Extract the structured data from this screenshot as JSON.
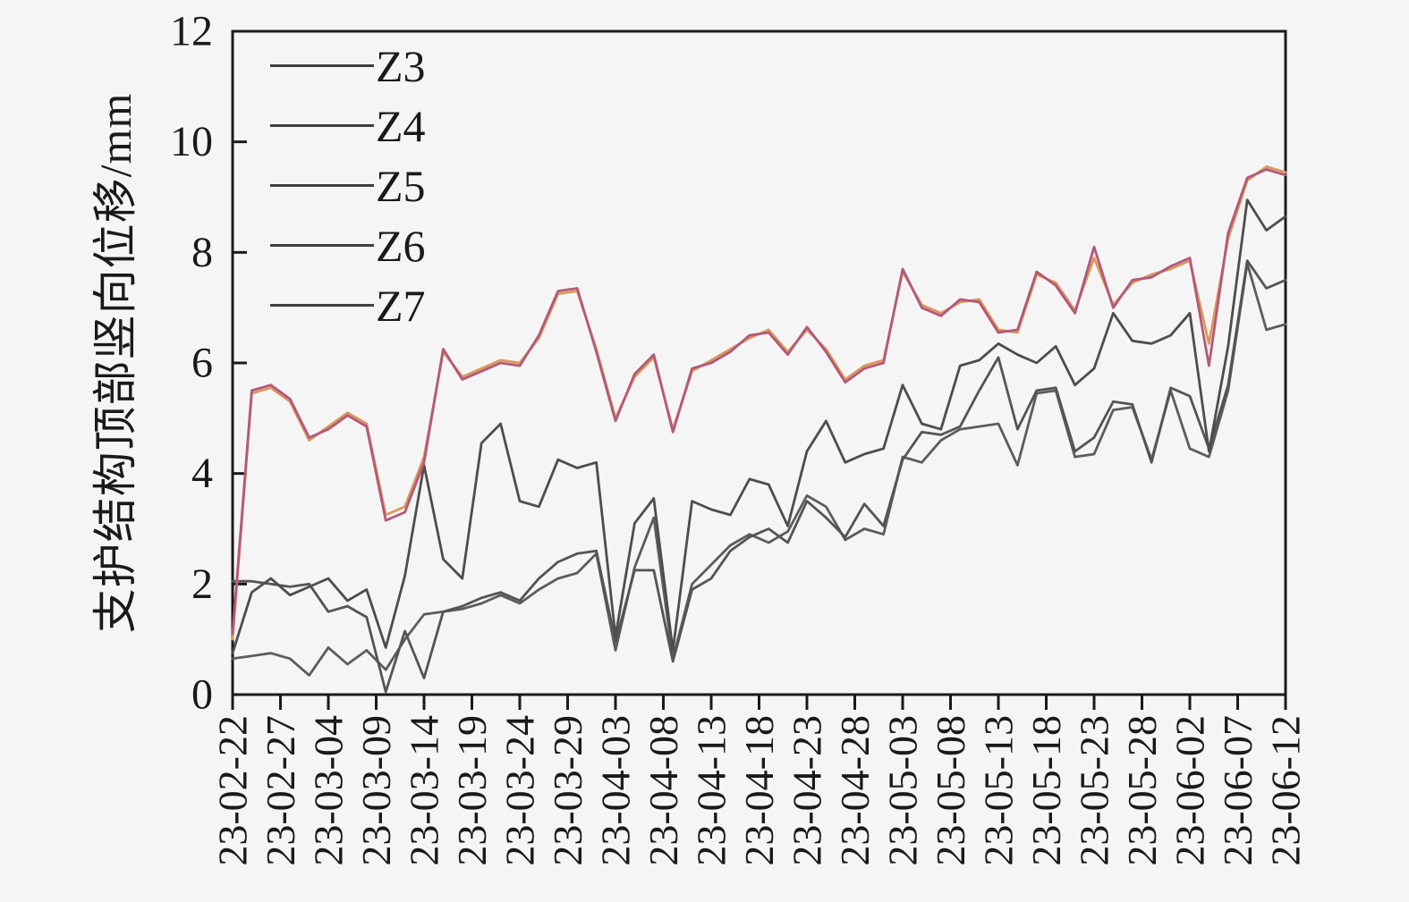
{
  "figure": {
    "background": "#f5f5f5",
    "axis_color": "#1a1a1a",
    "legend_swatch_color": "#3f3f3f"
  },
  "chart_data": {
    "type": "line",
    "title": "",
    "xlabel": "",
    "ylabel": "支护结构顶部竖向位移/mm",
    "ylim": [
      0,
      12
    ],
    "yticks": [
      0,
      2,
      4,
      6,
      8,
      10,
      12
    ],
    "grid": false,
    "legend_position": "top-left-inside",
    "x_tick_labels": [
      "23-02-22",
      "23-02-27",
      "23-03-04",
      "23-03-09",
      "23-03-14",
      "23-03-19",
      "23-03-24",
      "23-03-29",
      "23-04-03",
      "23-04-08",
      "23-04-13",
      "23-04-18",
      "23-04-23",
      "23-04-28",
      "23-05-03",
      "23-05-08",
      "23-05-13",
      "23-05-18",
      "23-05-23",
      "23-05-28",
      "23-06-02",
      "23-06-07",
      "23-06-12"
    ],
    "x_tick_step_days": 5,
    "x_total_days": 110,
    "sample_step_days": 2,
    "sample_dates": [
      "23-02-22",
      "23-02-24",
      "23-02-26",
      "23-02-28",
      "23-03-02",
      "23-03-04",
      "23-03-06",
      "23-03-08",
      "23-03-10",
      "23-03-12",
      "23-03-14",
      "23-03-16",
      "23-03-18",
      "23-03-20",
      "23-03-22",
      "23-03-24",
      "23-03-26",
      "23-03-28",
      "23-03-30",
      "23-04-01",
      "23-04-03",
      "23-04-05",
      "23-04-07",
      "23-04-09",
      "23-04-11",
      "23-04-13",
      "23-04-15",
      "23-04-17",
      "23-04-19",
      "23-04-21",
      "23-04-23",
      "23-04-25",
      "23-04-27",
      "23-04-29",
      "23-05-01",
      "23-05-03",
      "23-05-05",
      "23-05-07",
      "23-05-09",
      "23-05-11",
      "23-05-13",
      "23-05-15",
      "23-05-17",
      "23-05-19",
      "23-05-21",
      "23-05-23",
      "23-05-25",
      "23-05-27",
      "23-05-29",
      "23-05-31",
      "23-06-02",
      "23-06-04",
      "23-06-06",
      "23-06-08",
      "23-06-10",
      "23-06-12"
    ],
    "series": [
      {
        "name": "Z3",
        "color": "#b4587a",
        "values": [
          1.1,
          5.5,
          5.6,
          5.35,
          4.65,
          4.8,
          5.05,
          4.85,
          3.15,
          3.3,
          4.2,
          6.25,
          5.7,
          5.85,
          6.0,
          5.95,
          6.5,
          7.3,
          7.35,
          6.2,
          4.95,
          5.8,
          6.15,
          4.75,
          5.9,
          6.0,
          6.2,
          6.5,
          6.55,
          6.15,
          6.65,
          6.2,
          5.65,
          5.9,
          6.0,
          7.7,
          7.0,
          6.85,
          7.15,
          7.1,
          6.55,
          6.6,
          7.65,
          7.4,
          6.9,
          8.1,
          7.0,
          7.5,
          7.55,
          7.75,
          7.9,
          5.95,
          8.35,
          9.35,
          9.5,
          9.4
        ]
      },
      {
        "name": "Z4",
        "color": "#d89a5c",
        "values": [
          1.0,
          5.45,
          5.55,
          5.3,
          4.6,
          4.85,
          5.1,
          4.9,
          3.25,
          3.4,
          4.3,
          6.2,
          5.75,
          5.9,
          6.05,
          6.0,
          6.45,
          7.25,
          7.3,
          6.25,
          5.0,
          5.75,
          6.1,
          4.8,
          5.85,
          6.05,
          6.25,
          6.45,
          6.6,
          6.2,
          6.6,
          6.25,
          5.7,
          5.95,
          6.05,
          7.65,
          7.05,
          6.9,
          7.1,
          7.15,
          6.6,
          6.55,
          7.6,
          7.45,
          6.95,
          7.9,
          7.05,
          7.45,
          7.6,
          7.7,
          7.85,
          6.35,
          8.25,
          9.3,
          9.55,
          9.45
        ]
      },
      {
        "name": "Z5",
        "color": "#4d4d4d",
        "values": [
          0.75,
          1.85,
          2.1,
          1.8,
          1.95,
          2.1,
          1.7,
          1.9,
          0.85,
          2.15,
          4.15,
          2.45,
          2.1,
          4.55,
          4.9,
          3.5,
          3.4,
          4.25,
          4.1,
          4.2,
          1.05,
          3.1,
          3.55,
          0.8,
          3.5,
          3.35,
          3.25,
          3.9,
          3.8,
          3.05,
          4.4,
          4.95,
          4.2,
          4.35,
          4.45,
          5.6,
          4.9,
          4.8,
          5.95,
          6.05,
          6.35,
          6.15,
          6.0,
          6.3,
          5.6,
          5.9,
          6.9,
          6.4,
          6.35,
          6.5,
          6.9,
          4.4,
          6.3,
          8.95,
          8.4,
          8.65
        ]
      },
      {
        "name": "Z6",
        "color": "#545454",
        "values": [
          2.05,
          2.05,
          2.0,
          1.95,
          2.0,
          1.5,
          1.6,
          1.4,
          0.05,
          1.15,
          0.3,
          1.5,
          1.6,
          1.75,
          1.85,
          1.7,
          2.1,
          2.4,
          2.55,
          2.6,
          0.95,
          2.25,
          2.25,
          0.6,
          1.9,
          2.1,
          2.6,
          2.85,
          3.0,
          2.75,
          3.5,
          3.2,
          2.85,
          3.45,
          3.05,
          4.25,
          4.75,
          4.7,
          4.85,
          5.5,
          6.1,
          4.8,
          5.5,
          5.55,
          4.4,
          4.65,
          5.3,
          5.25,
          4.2,
          5.55,
          5.4,
          4.45,
          5.6,
          7.85,
          7.35,
          7.5
        ]
      },
      {
        "name": "Z7",
        "color": "#5c5c5c",
        "values": [
          0.65,
          0.7,
          0.75,
          0.65,
          0.35,
          0.85,
          0.55,
          0.8,
          0.45,
          1.0,
          1.45,
          1.5,
          1.55,
          1.65,
          1.8,
          1.65,
          1.9,
          2.1,
          2.2,
          2.55,
          0.8,
          2.3,
          3.2,
          0.65,
          2.0,
          2.35,
          2.7,
          2.9,
          2.75,
          2.95,
          3.6,
          3.4,
          2.8,
          3.0,
          2.9,
          4.3,
          4.2,
          4.6,
          4.8,
          4.85,
          4.9,
          4.15,
          5.45,
          5.5,
          4.3,
          4.35,
          5.15,
          5.2,
          4.25,
          5.5,
          4.45,
          4.3,
          5.5,
          7.8,
          6.6,
          6.7
        ]
      }
    ]
  }
}
